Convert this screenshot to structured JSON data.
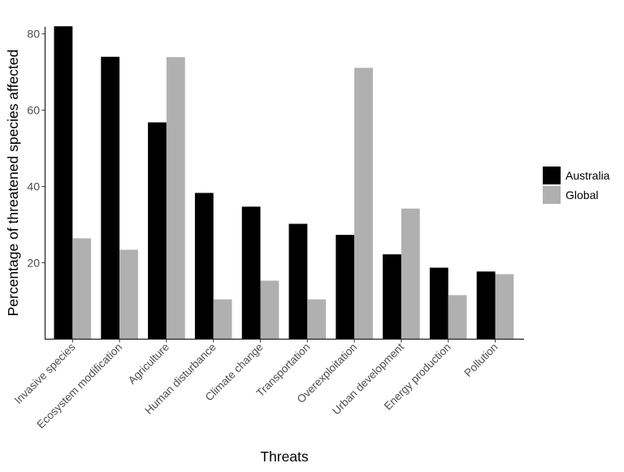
{
  "chart_data": {
    "type": "bar",
    "title": "",
    "xlabel": "Threats",
    "ylabel": "Percentage of threatened species affected",
    "categories": [
      "Invasive species",
      "Ecosystem modification",
      "Agriculture",
      "Human disturbance",
      "Climate change",
      "Transportation",
      "Overexploitation",
      "Urban development",
      "Energy production",
      "Pollution"
    ],
    "series": [
      {
        "name": "Australia",
        "color": "#000000",
        "values": [
          82,
          74,
          56.8,
          38.3,
          34.7,
          30.2,
          27.3,
          22.2,
          18.7,
          17.7
        ]
      },
      {
        "name": "Global",
        "color": "#b0b0b0",
        "values": [
          26.4,
          23.4,
          73.9,
          10.4,
          15.3,
          10.4,
          71.1,
          34.2,
          11.5,
          17.0
        ]
      }
    ],
    "yticks": [
      20,
      40,
      60,
      80
    ],
    "ylim": [
      0,
      82
    ],
    "grid": false,
    "legend_position": "right"
  }
}
